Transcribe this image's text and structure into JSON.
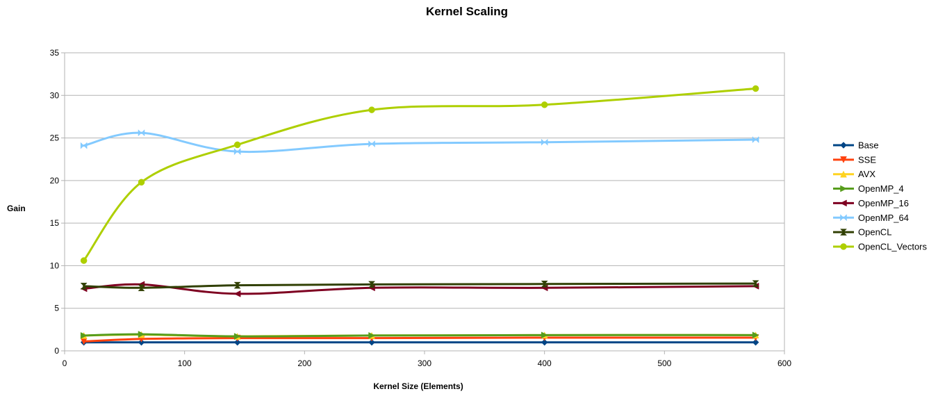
{
  "chart_data": {
    "type": "line",
    "title": "Kernel Scaling",
    "xlabel": "Kernel Size (Elements)",
    "ylabel": "Gain",
    "xlim": [
      0,
      600
    ],
    "ylim": [
      0,
      35
    ],
    "xticks": [
      0,
      100,
      200,
      300,
      400,
      500,
      600
    ],
    "yticks": [
      0,
      5,
      10,
      15,
      20,
      25,
      30,
      35
    ],
    "grid": "horizontal",
    "legend_position": "right",
    "smooth": true,
    "x": [
      16,
      64,
      144,
      256,
      400,
      576
    ],
    "series": [
      {
        "name": "Base",
        "color": "#004586",
        "marker": "diamond",
        "values": [
          1.0,
          1.0,
          1.0,
          1.0,
          1.0,
          1.0
        ]
      },
      {
        "name": "SSE",
        "color": "#ff420e",
        "marker": "triangle-down",
        "values": [
          1.1,
          1.4,
          1.5,
          1.5,
          1.55,
          1.55
        ]
      },
      {
        "name": "AVX",
        "color": "#ffd320",
        "marker": "triangle-up",
        "values": [
          1.8,
          1.9,
          1.7,
          1.8,
          1.85,
          1.85
        ]
      },
      {
        "name": "OpenMP_4",
        "color": "#579d1c",
        "marker": "triangle-right",
        "values": [
          1.8,
          1.95,
          1.7,
          1.8,
          1.85,
          1.85
        ]
      },
      {
        "name": "OpenMP_16",
        "color": "#7e0021",
        "marker": "triangle-left",
        "values": [
          7.3,
          7.8,
          6.7,
          7.4,
          7.4,
          7.6
        ]
      },
      {
        "name": "OpenMP_64",
        "color": "#83caff",
        "marker": "bowtie",
        "values": [
          24.1,
          25.6,
          23.4,
          24.3,
          24.5,
          24.8
        ]
      },
      {
        "name": "OpenCL",
        "color": "#314004",
        "marker": "hourglass",
        "values": [
          7.6,
          7.4,
          7.7,
          7.8,
          7.85,
          7.9
        ]
      },
      {
        "name": "OpenCL_Vectors",
        "color": "#aecf00",
        "marker": "circle",
        "values": [
          10.6,
          19.8,
          24.2,
          28.3,
          28.9,
          30.8
        ]
      }
    ]
  }
}
